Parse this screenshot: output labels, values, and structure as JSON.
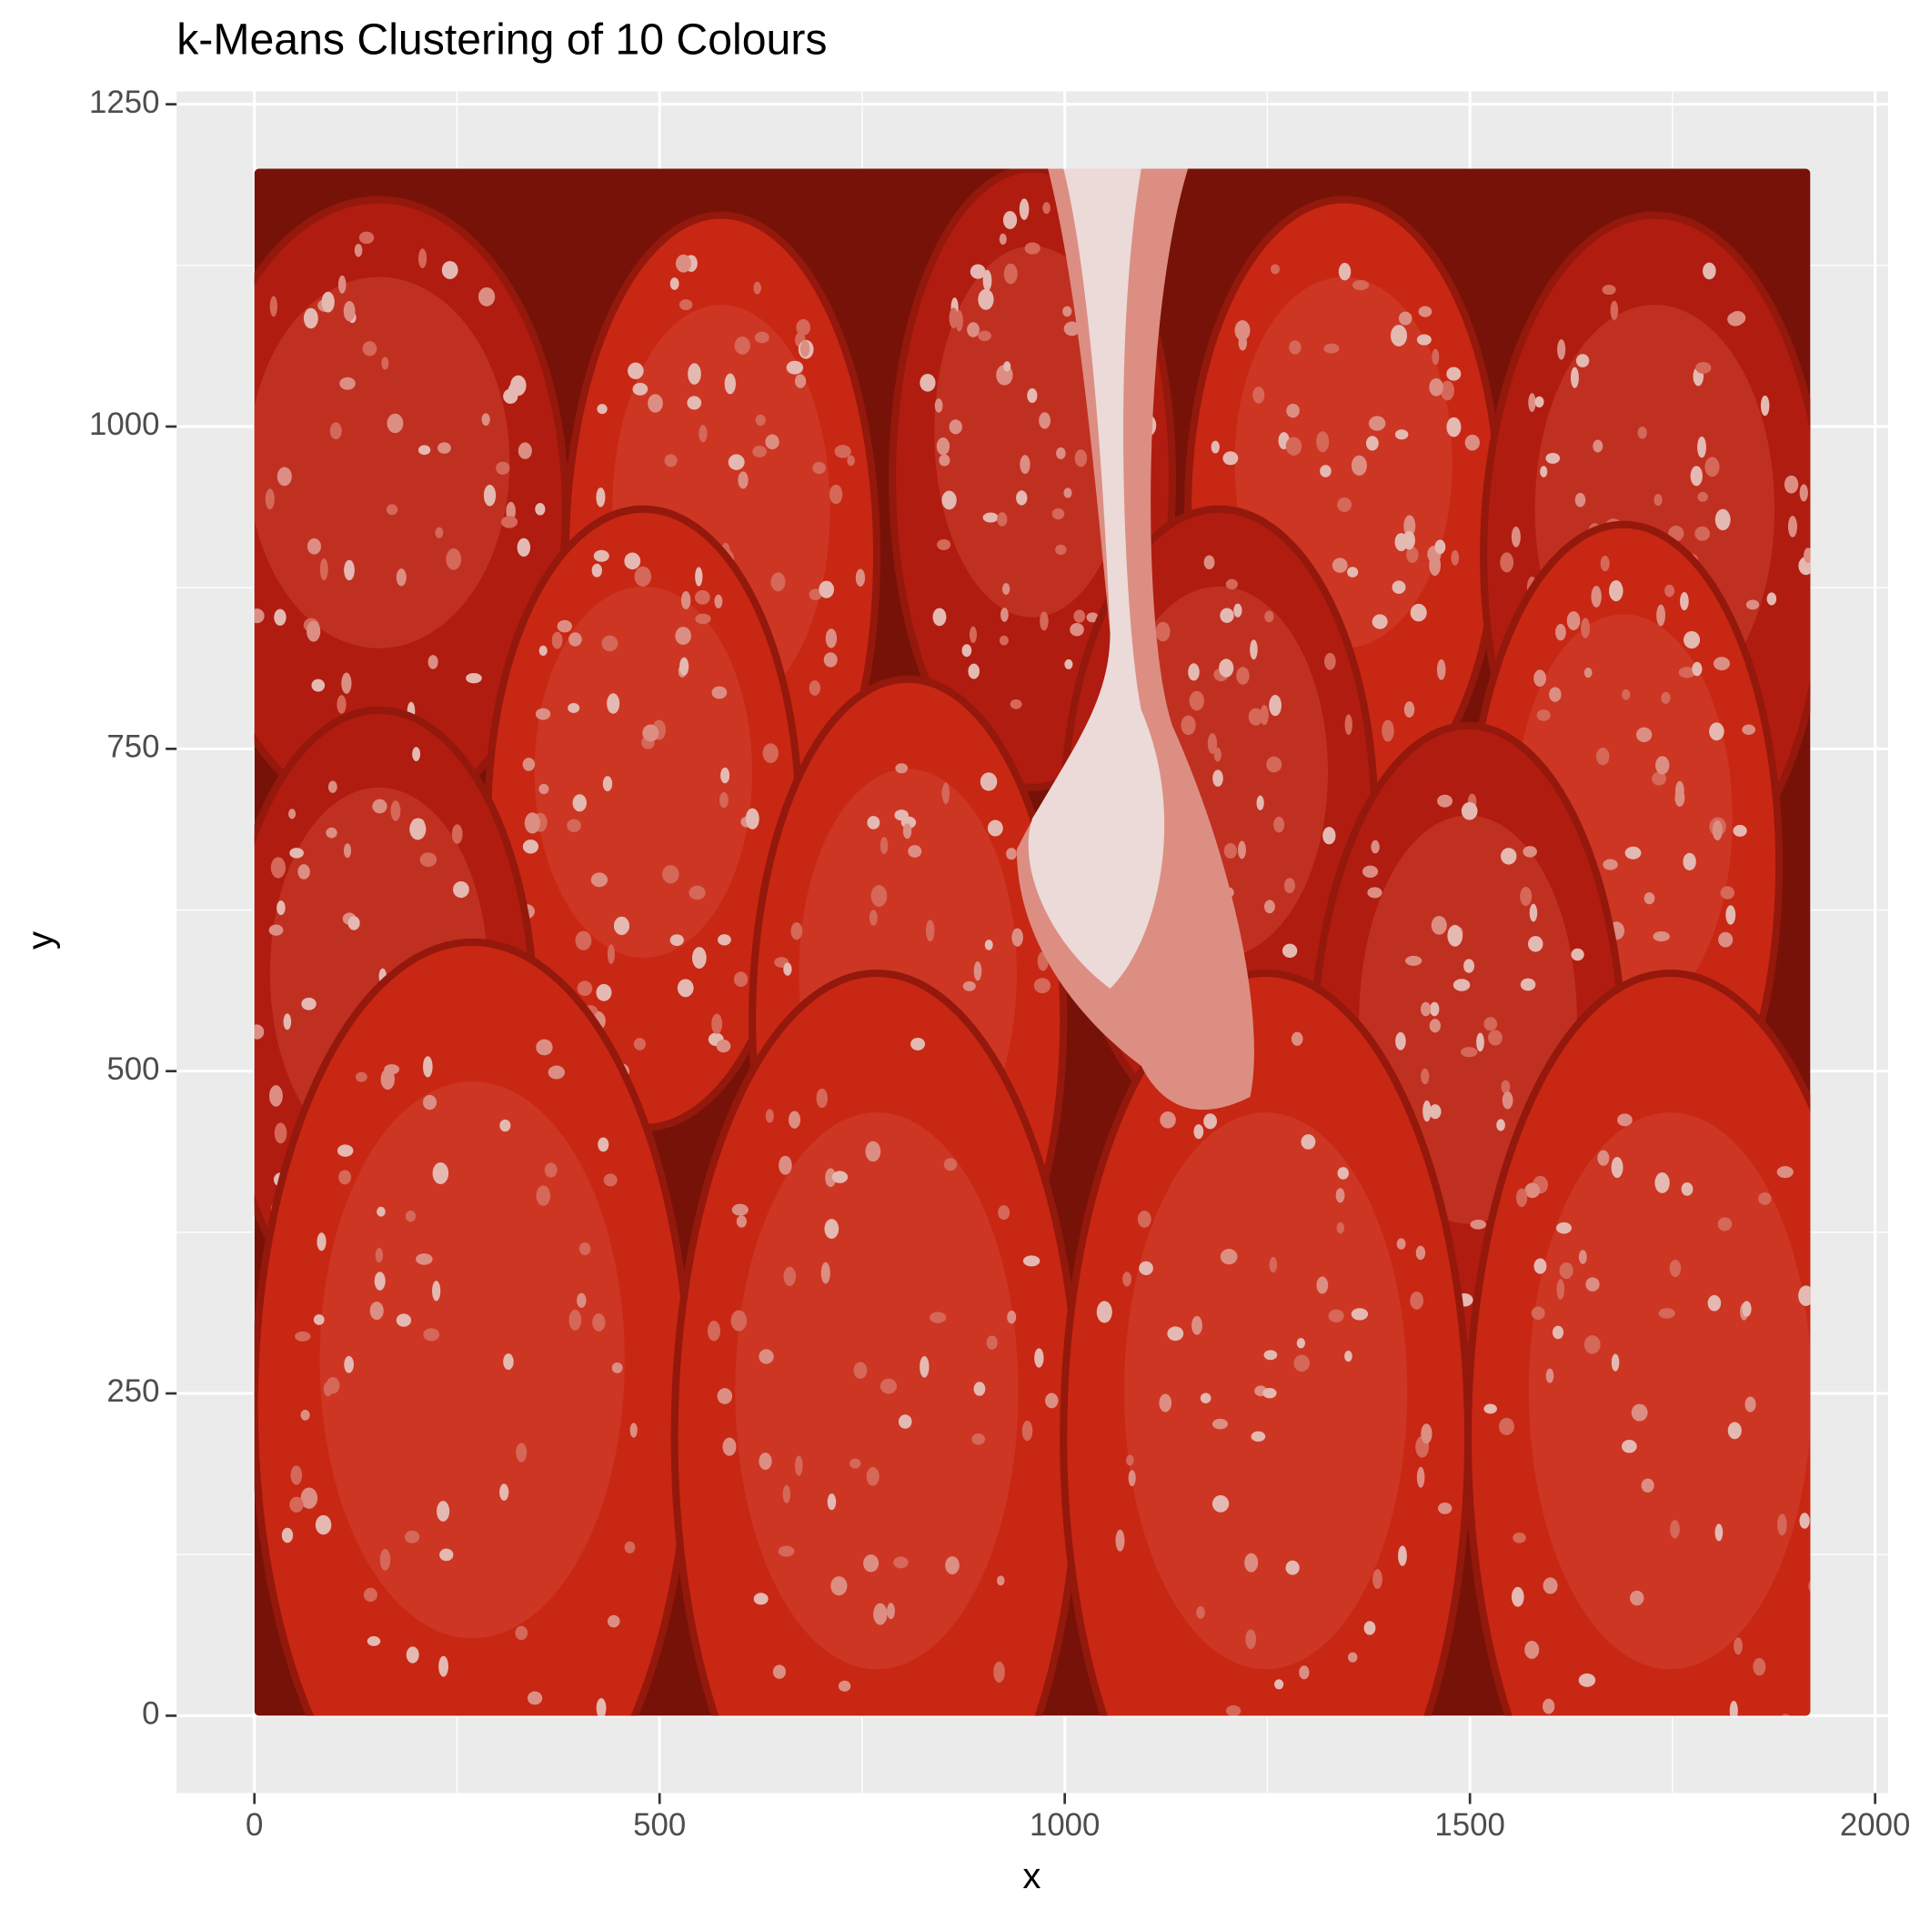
{
  "chart_data": {
    "type": "raster",
    "title": "k-Means Clustering of 10 Colours",
    "x_label": "x",
    "y_label": "y",
    "raster_extent": {
      "x": [
        0,
        1920
      ],
      "y": [
        0,
        1200
      ]
    },
    "palette": [
      "#5a0f0a",
      "#7a1308",
      "#9a1a0c",
      "#b81e10",
      "#d22a14",
      "#d94a36",
      "#e0705f",
      "#e89a8e",
      "#f0c8c0",
      "#f8ecea"
    ],
    "xlim": [
      -96,
      2016
    ],
    "xticks": [
      0,
      500,
      1000,
      1500,
      2000
    ],
    "ylim": [
      -60,
      1260
    ],
    "yticks": [
      0,
      250,
      500,
      750,
      1000,
      1250
    ],
    "grid": true
  }
}
